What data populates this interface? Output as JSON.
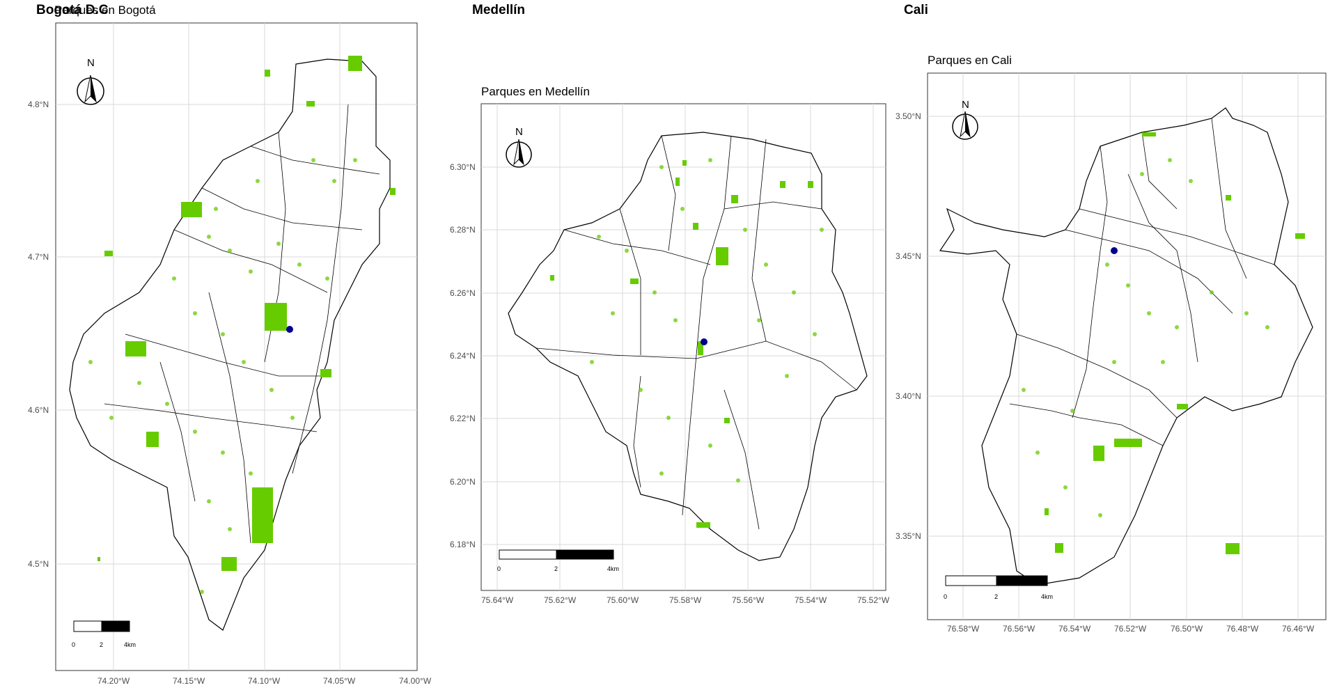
{
  "maps": [
    {
      "id": "bogota",
      "panel_title": "Bogotá D.C",
      "map_title": "Parques en Bogotá",
      "x_ticks": [
        "74.20°W",
        "74.15°W",
        "74.10°W",
        "74.05°W",
        "74.00°W"
      ],
      "y_ticks": [
        "4.8°N",
        "4.7°N",
        "4.6°N",
        "4.5°N"
      ],
      "scale_labels": [
        "0",
        "2",
        "4km"
      ],
      "north_label": "N"
    },
    {
      "id": "medellin",
      "panel_title": "Medellín",
      "map_title": "Parques en Medellín",
      "x_ticks": [
        "75.64°W",
        "75.62°W",
        "75.60°W",
        "75.58°W",
        "75.56°W",
        "75.54°W",
        "75.52°W"
      ],
      "y_ticks": [
        "6.30°N",
        "6.28°N",
        "6.26°N",
        "6.24°N",
        "6.22°N",
        "6.20°N",
        "6.18°N"
      ],
      "scale_labels": [
        "0",
        "2",
        "4km"
      ],
      "north_label": "N"
    },
    {
      "id": "cali",
      "panel_title": "Cali",
      "map_title": "Parques en Cali",
      "x_ticks": [
        "76.58°W",
        "76.56°W",
        "76.54°W",
        "76.52°W",
        "76.50°W",
        "76.48°W",
        "76.46°W"
      ],
      "y_ticks": [
        "3.50°N",
        "3.45°N",
        "3.40°N",
        "3.35°N"
      ],
      "scale_labels": [
        "0",
        "2",
        "4km"
      ],
      "north_label": "N"
    }
  ],
  "colors": {
    "park_fill": "#66CC00",
    "boundary": "#000000",
    "marker": "#00008B",
    "grid": "#d9d9d9"
  },
  "icons": [
    "north-arrow-icon",
    "scale-bar"
  ]
}
